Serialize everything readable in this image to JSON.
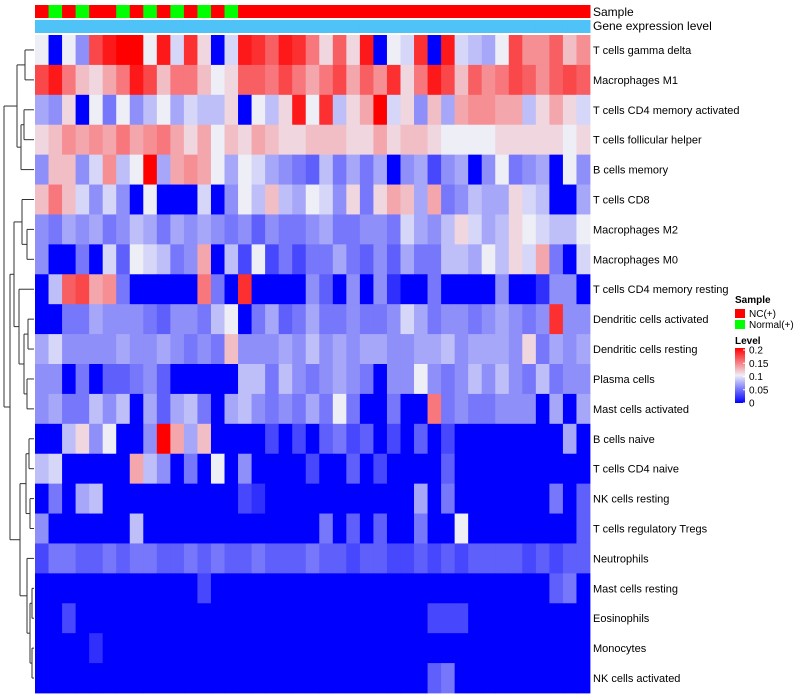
{
  "chart_data": {
    "type": "heatmap",
    "annotation_rows": [
      "Sample",
      "Gene expression level"
    ],
    "sample_groups": [
      "NC",
      "Normal",
      "NC",
      "Normal",
      "NC",
      "NC",
      "Normal",
      "NC",
      "Normal",
      "NC",
      "Normal",
      "NC",
      "Normal",
      "NC",
      "Normal",
      "NC",
      "NC",
      "NC",
      "NC",
      "NC",
      "NC",
      "NC",
      "NC",
      "NC",
      "NC",
      "NC",
      "NC",
      "NC",
      "NC",
      "NC",
      "NC",
      "NC",
      "NC",
      "NC",
      "NC",
      "NC",
      "NC",
      "NC",
      "NC",
      "NC",
      "NC"
    ],
    "expression_bar_color": "#4FC3F7",
    "rows": [
      "T cells gamma delta",
      "Macrophages M1",
      "T cells CD4 memory activated",
      "T cells follicular helper",
      "B cells memory",
      "T cells CD8",
      "Macrophages M2",
      "Macrophages M0",
      "T cells CD4 memory resting",
      "Dendritic cells activated",
      "Dendritic cells resting",
      "Plasma cells",
      "Mast cells activated",
      "B cells naive",
      "T cells CD4 naive",
      "NK cells resting",
      "T cells regulatory  Tregs",
      "Neutrophils",
      "Mast cells resting",
      "Eosinophils",
      "Monocytes",
      "NK cells activated"
    ],
    "values": [
      [
        0.1,
        0.0,
        0.1,
        0.06,
        0.17,
        0.19,
        0.2,
        0.2,
        0.1,
        0.19,
        0.09,
        0.18,
        0.11,
        0.0,
        0.09,
        0.19,
        0.18,
        0.16,
        0.19,
        0.18,
        0.15,
        0.11,
        0.16,
        0.11,
        0.19,
        0.0,
        0.1,
        0.09,
        0.18,
        0.0,
        0.19,
        0.09,
        0.08,
        0.07,
        0.1,
        0.17,
        0.14,
        0.14,
        0.16,
        0.12,
        0.14
      ],
      [
        0.17,
        0.19,
        0.15,
        0.12,
        0.11,
        0.13,
        0.15,
        0.19,
        0.17,
        0.12,
        0.15,
        0.15,
        0.12,
        0.1,
        0.11,
        0.16,
        0.16,
        0.15,
        0.17,
        0.15,
        0.13,
        0.15,
        0.17,
        0.13,
        0.16,
        0.14,
        0.18,
        0.11,
        0.15,
        0.19,
        0.17,
        0.12,
        0.16,
        0.14,
        0.15,
        0.17,
        0.16,
        0.14,
        0.16,
        0.17,
        0.16
      ],
      [
        0.07,
        0.06,
        0.11,
        0.0,
        0.1,
        0.05,
        0.1,
        0.06,
        0.08,
        0.1,
        0.07,
        0.09,
        0.08,
        0.08,
        0.11,
        0.0,
        0.1,
        0.08,
        0.11,
        0.19,
        0.1,
        0.18,
        0.08,
        0.11,
        0.13,
        0.2,
        0.09,
        0.11,
        0.06,
        0.12,
        0.07,
        0.13,
        0.14,
        0.14,
        0.13,
        0.13,
        0.08,
        0.11,
        0.13,
        0.11,
        0.09
      ],
      [
        0.11,
        0.12,
        0.14,
        0.13,
        0.14,
        0.13,
        0.15,
        0.13,
        0.14,
        0.15,
        0.13,
        0.11,
        0.13,
        0.1,
        0.12,
        0.11,
        0.13,
        0.12,
        0.11,
        0.11,
        0.12,
        0.12,
        0.12,
        0.11,
        0.11,
        0.13,
        0.11,
        0.12,
        0.12,
        0.11,
        0.1,
        0.1,
        0.1,
        0.1,
        0.11,
        0.11,
        0.11,
        0.11,
        0.11,
        0.1,
        0.11
      ],
      [
        0.06,
        0.12,
        0.12,
        0.06,
        0.09,
        0.14,
        0.08,
        0.1,
        0.2,
        0.07,
        0.13,
        0.14,
        0.13,
        0.1,
        0.07,
        0.1,
        0.09,
        0.07,
        0.06,
        0.05,
        0.04,
        0.08,
        0.05,
        0.07,
        0.05,
        0.07,
        0.0,
        0.06,
        0.07,
        0.03,
        0.06,
        0.07,
        0.0,
        0.06,
        0.1,
        0.05,
        0.06,
        0.07,
        0.0,
        0.1,
        0.06
      ],
      [
        0.12,
        0.15,
        0.12,
        0.09,
        0.06,
        0.09,
        0.06,
        0.0,
        0.1,
        0.0,
        0.0,
        0.0,
        0.09,
        0.0,
        0.06,
        0.1,
        0.08,
        0.12,
        0.08,
        0.07,
        0.1,
        0.09,
        0.06,
        0.11,
        0.05,
        0.11,
        0.13,
        0.12,
        0.07,
        0.13,
        0.05,
        0.06,
        0.08,
        0.07,
        0.07,
        0.11,
        0.09,
        0.08,
        0.0,
        0.0,
        0.07
      ],
      [
        0.06,
        0.05,
        0.07,
        0.06,
        0.07,
        0.05,
        0.06,
        0.08,
        0.07,
        0.05,
        0.07,
        0.06,
        0.07,
        0.06,
        0.05,
        0.06,
        0.04,
        0.06,
        0.05,
        0.05,
        0.06,
        0.07,
        0.05,
        0.05,
        0.06,
        0.06,
        0.05,
        0.09,
        0.07,
        0.06,
        0.08,
        0.11,
        0.09,
        0.07,
        0.08,
        0.11,
        0.1,
        0.09,
        0.08,
        0.08,
        0.1
      ],
      [
        0.06,
        0.0,
        0.0,
        0.05,
        0.0,
        0.09,
        0.04,
        0.1,
        0.09,
        0.08,
        0.05,
        0.06,
        0.13,
        0.0,
        0.08,
        0.03,
        0.1,
        0.03,
        0.05,
        0.03,
        0.05,
        0.05,
        0.07,
        0.05,
        0.04,
        0.06,
        0.04,
        0.07,
        0.05,
        0.05,
        0.08,
        0.08,
        0.07,
        0.1,
        0.08,
        0.11,
        0.09,
        0.13,
        0.05,
        0.0,
        0.09
      ],
      [
        0.0,
        0.08,
        0.16,
        0.17,
        0.13,
        0.14,
        0.05,
        0.0,
        0.0,
        0.0,
        0.0,
        0.0,
        0.15,
        0.05,
        0.0,
        0.18,
        0.0,
        0.0,
        0.0,
        0.0,
        0.06,
        0.04,
        0.0,
        0.06,
        0.0,
        0.06,
        0.02,
        0.0,
        0.0,
        0.05,
        0.0,
        0.0,
        0.0,
        0.0,
        0.06,
        0.0,
        0.0,
        0.02,
        0.06,
        0.06,
        0.0
      ],
      [
        0.0,
        0.0,
        0.05,
        0.05,
        0.07,
        0.06,
        0.06,
        0.06,
        0.05,
        0.04,
        0.06,
        0.06,
        0.05,
        0.08,
        0.1,
        0.0,
        0.05,
        0.07,
        0.04,
        0.05,
        0.07,
        0.05,
        0.05,
        0.06,
        0.05,
        0.05,
        0.06,
        0.09,
        0.07,
        0.05,
        0.06,
        0.06,
        0.05,
        0.06,
        0.07,
        0.06,
        0.05,
        0.06,
        0.18,
        0.06,
        0.06
      ],
      [
        0.07,
        0.09,
        0.06,
        0.06,
        0.06,
        0.06,
        0.07,
        0.06,
        0.06,
        0.07,
        0.06,
        0.05,
        0.06,
        0.05,
        0.12,
        0.06,
        0.06,
        0.06,
        0.07,
        0.06,
        0.08,
        0.06,
        0.07,
        0.06,
        0.07,
        0.07,
        0.06,
        0.06,
        0.07,
        0.07,
        0.08,
        0.06,
        0.07,
        0.07,
        0.07,
        0.06,
        0.11,
        0.05,
        0.07,
        0.06,
        0.07
      ],
      [
        0.06,
        0.06,
        0.0,
        0.05,
        0.0,
        0.04,
        0.04,
        0.05,
        0.06,
        0.04,
        0.0,
        0.0,
        0.0,
        0.0,
        0.0,
        0.08,
        0.08,
        0.05,
        0.08,
        0.06,
        0.05,
        0.06,
        0.07,
        0.06,
        0.05,
        0.0,
        0.06,
        0.06,
        0.1,
        0.06,
        0.05,
        0.06,
        0.08,
        0.06,
        0.08,
        0.06,
        0.05,
        0.08,
        0.05,
        0.06,
        0.06
      ],
      [
        0.06,
        0.07,
        0.05,
        0.05,
        0.08,
        0.06,
        0.08,
        0.0,
        0.07,
        0.04,
        0.07,
        0.08,
        0.05,
        0.0,
        0.07,
        0.08,
        0.06,
        0.05,
        0.06,
        0.05,
        0.07,
        0.05,
        0.1,
        0.05,
        0.0,
        0.0,
        0.05,
        0.0,
        0.0,
        0.15,
        0.05,
        0.06,
        0.05,
        0.05,
        0.06,
        0.06,
        0.06,
        0.0,
        0.07,
        0.0,
        0.07
      ],
      [
        0.0,
        0.0,
        0.08,
        0.11,
        0.06,
        0.1,
        0.0,
        0.0,
        0.06,
        0.2,
        0.13,
        0.07,
        0.12,
        0.0,
        0.0,
        0.0,
        0.0,
        0.03,
        0.0,
        0.03,
        0.0,
        0.04,
        0.05,
        0.03,
        0.04,
        0.0,
        0.03,
        0.0,
        0.04,
        0.0,
        0.03,
        0.0,
        0.0,
        0.0,
        0.0,
        0.0,
        0.0,
        0.0,
        0.0,
        0.07,
        0.0
      ],
      [
        0.08,
        0.09,
        0.0,
        0.0,
        0.0,
        0.0,
        0.0,
        0.13,
        0.08,
        0.06,
        0.0,
        0.05,
        0.0,
        0.1,
        0.0,
        0.06,
        0.0,
        0.0,
        0.0,
        0.0,
        0.03,
        0.0,
        0.0,
        0.04,
        0.0,
        0.03,
        0.0,
        0.0,
        0.0,
        0.0,
        0.04,
        0.0,
        0.0,
        0.0,
        0.0,
        0.0,
        0.0,
        0.0,
        0.0,
        0.0,
        0.0
      ],
      [
        0.0,
        0.05,
        0.0,
        0.07,
        0.08,
        0.0,
        0.0,
        0.0,
        0.0,
        0.0,
        0.0,
        0.0,
        0.0,
        0.0,
        0.0,
        0.03,
        0.02,
        0.0,
        0.0,
        0.0,
        0.0,
        0.0,
        0.0,
        0.0,
        0.0,
        0.0,
        0.0,
        0.0,
        0.07,
        0.0,
        0.05,
        0.0,
        0.0,
        0.0,
        0.0,
        0.0,
        0.0,
        0.0,
        0.05,
        0.0,
        0.04
      ],
      [
        0.06,
        0.0,
        0.0,
        0.0,
        0.0,
        0.0,
        0.0,
        0.08,
        0.0,
        0.0,
        0.0,
        0.0,
        0.0,
        0.0,
        0.0,
        0.0,
        0.0,
        0.0,
        0.0,
        0.0,
        0.0,
        0.05,
        0.0,
        0.04,
        0.0,
        0.04,
        0.0,
        0.0,
        0.05,
        0.0,
        0.0,
        0.1,
        0.0,
        0.0,
        0.0,
        0.0,
        0.0,
        0.0,
        0.0,
        0.0,
        0.04
      ],
      [
        0.03,
        0.05,
        0.05,
        0.04,
        0.04,
        0.05,
        0.04,
        0.05,
        0.05,
        0.04,
        0.04,
        0.05,
        0.04,
        0.05,
        0.04,
        0.04,
        0.05,
        0.04,
        0.04,
        0.04,
        0.05,
        0.04,
        0.04,
        0.03,
        0.04,
        0.04,
        0.03,
        0.03,
        0.04,
        0.03,
        0.04,
        0.03,
        0.04,
        0.04,
        0.04,
        0.04,
        0.03,
        0.04,
        0.03,
        0.04,
        0.04
      ],
      [
        0.0,
        0.0,
        0.0,
        0.0,
        0.0,
        0.0,
        0.0,
        0.0,
        0.0,
        0.0,
        0.0,
        0.0,
        0.03,
        0.0,
        0.0,
        0.0,
        0.0,
        0.0,
        0.0,
        0.0,
        0.0,
        0.0,
        0.0,
        0.0,
        0.0,
        0.0,
        0.0,
        0.0,
        0.0,
        0.0,
        0.0,
        0.0,
        0.0,
        0.0,
        0.0,
        0.0,
        0.0,
        0.0,
        0.04,
        0.05,
        0.0
      ],
      [
        0.0,
        0.0,
        0.03,
        0.0,
        0.0,
        0.0,
        0.0,
        0.0,
        0.0,
        0.0,
        0.0,
        0.0,
        0.0,
        0.0,
        0.0,
        0.0,
        0.0,
        0.0,
        0.0,
        0.0,
        0.0,
        0.0,
        0.0,
        0.0,
        0.0,
        0.0,
        0.0,
        0.0,
        0.0,
        0.03,
        0.03,
        0.03,
        0.0,
        0.0,
        0.0,
        0.0,
        0.0,
        0.0,
        0.0,
        0.0,
        0.0
      ],
      [
        0.0,
        0.0,
        0.0,
        0.0,
        0.02,
        0.0,
        0.0,
        0.0,
        0.0,
        0.0,
        0.0,
        0.0,
        0.0,
        0.0,
        0.0,
        0.0,
        0.0,
        0.0,
        0.0,
        0.0,
        0.0,
        0.0,
        0.0,
        0.0,
        0.0,
        0.0,
        0.0,
        0.0,
        0.0,
        0.0,
        0.0,
        0.0,
        0.0,
        0.0,
        0.0,
        0.0,
        0.0,
        0.0,
        0.0,
        0.0,
        0.0
      ],
      [
        0.0,
        0.0,
        0.0,
        0.0,
        0.0,
        0.0,
        0.0,
        0.0,
        0.0,
        0.0,
        0.0,
        0.0,
        0.0,
        0.0,
        0.0,
        0.0,
        0.0,
        0.0,
        0.0,
        0.0,
        0.0,
        0.0,
        0.0,
        0.0,
        0.0,
        0.0,
        0.0,
        0.0,
        0.0,
        0.04,
        0.05,
        0.0,
        0.0,
        0.0,
        0.0,
        0.0,
        0.0,
        0.0,
        0.0,
        0.0,
        0.0
      ]
    ],
    "color_scale": {
      "range": [
        0,
        0.2
      ],
      "stops": [
        {
          "value": 0,
          "color": "#0000FF"
        },
        {
          "value": 0.1,
          "color": "#EEEEF7"
        },
        {
          "value": 0.2,
          "color": "#FF0000"
        }
      ]
    },
    "legend": {
      "sample_title": "Sample",
      "sample_entries": [
        {
          "label": "NC(+)",
          "color": "#FF0000"
        },
        {
          "label": "Normal(+)",
          "color": "#00FF00"
        }
      ],
      "level_title": "Level",
      "level_ticks": [
        "0.2",
        "0.15",
        "0.1",
        "0.05",
        "0"
      ],
      "position": "right"
    }
  }
}
